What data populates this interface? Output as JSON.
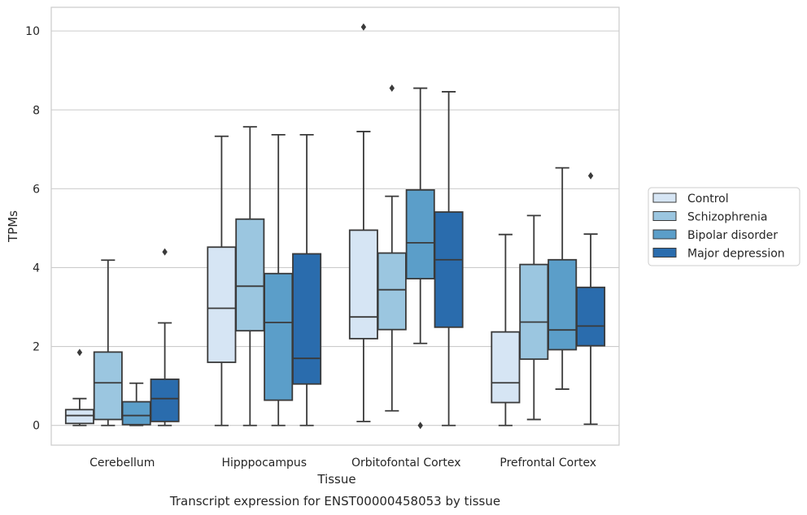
{
  "chart_data": {
    "type": "boxplot",
    "caption": "Transcript expression for ENST00000458053 by tissue",
    "xlabel": "Tissue",
    "ylabel": "TPMs",
    "ylim": [
      -0.5,
      10.6
    ],
    "yticks": [
      0,
      2,
      4,
      6,
      8,
      10
    ],
    "grid": true,
    "legend_position": "right",
    "categories": [
      "Cerebellum",
      "Hipppocampus",
      "Orbitofontal Cortex",
      "Prefrontal Cortex"
    ],
    "series": [
      {
        "name": "Control",
        "color": "#d6e5f4",
        "boxes": [
          {
            "whislo": 0.0,
            "q1": 0.05,
            "med": 0.25,
            "q3": 0.4,
            "whishi": 0.68,
            "fliers": [
              1.85
            ]
          },
          {
            "whislo": 0.0,
            "q1": 1.6,
            "med": 2.97,
            "q3": 4.52,
            "whishi": 7.33,
            "fliers": []
          },
          {
            "whislo": 0.1,
            "q1": 2.2,
            "med": 2.75,
            "q3": 4.95,
            "whishi": 7.45,
            "fliers": [
              10.1
            ]
          },
          {
            "whislo": 0.0,
            "q1": 0.58,
            "med": 1.08,
            "q3": 2.37,
            "whishi": 4.84,
            "fliers": []
          }
        ]
      },
      {
        "name": "Schizophrenia",
        "color": "#9bc6e0",
        "boxes": [
          {
            "whislo": 0.0,
            "q1": 0.15,
            "med": 1.08,
            "q3": 1.86,
            "whishi": 4.19,
            "fliers": []
          },
          {
            "whislo": 0.0,
            "q1": 2.4,
            "med": 3.53,
            "q3": 5.23,
            "whishi": 7.57,
            "fliers": []
          },
          {
            "whislo": 0.37,
            "q1": 2.43,
            "med": 3.44,
            "q3": 4.37,
            "whishi": 5.81,
            "fliers": [
              8.55
            ]
          },
          {
            "whislo": 0.15,
            "q1": 1.68,
            "med": 2.62,
            "q3": 4.08,
            "whishi": 5.32,
            "fliers": []
          }
        ]
      },
      {
        "name": "Bipolar disorder",
        "color": "#5b9ec9",
        "boxes": [
          {
            "whislo": 0.0,
            "q1": 0.02,
            "med": 0.25,
            "q3": 0.6,
            "whishi": 1.07,
            "fliers": []
          },
          {
            "whislo": 0.0,
            "q1": 0.64,
            "med": 2.61,
            "q3": 3.85,
            "whishi": 7.37,
            "fliers": []
          },
          {
            "whislo": 2.08,
            "q1": 3.72,
            "med": 4.63,
            "q3": 5.97,
            "whishi": 8.55,
            "fliers": [
              0.0
            ]
          },
          {
            "whislo": 0.92,
            "q1": 1.92,
            "med": 2.42,
            "q3": 4.2,
            "whishi": 6.53,
            "fliers": []
          }
        ]
      },
      {
        "name": "Major depression",
        "color": "#2a6cad",
        "boxes": [
          {
            "whislo": 0.0,
            "q1": 0.1,
            "med": 0.68,
            "q3": 1.17,
            "whishi": 2.6,
            "fliers": [
              4.4
            ]
          },
          {
            "whislo": 0.0,
            "q1": 1.05,
            "med": 1.7,
            "q3": 4.35,
            "whishi": 7.37,
            "fliers": []
          },
          {
            "whislo": 0.0,
            "q1": 2.49,
            "med": 4.2,
            "q3": 5.41,
            "whishi": 8.46,
            "fliers": []
          },
          {
            "whislo": 0.03,
            "q1": 2.02,
            "med": 2.52,
            "q3": 3.5,
            "whishi": 4.85,
            "fliers": [
              6.33
            ]
          }
        ]
      }
    ]
  }
}
